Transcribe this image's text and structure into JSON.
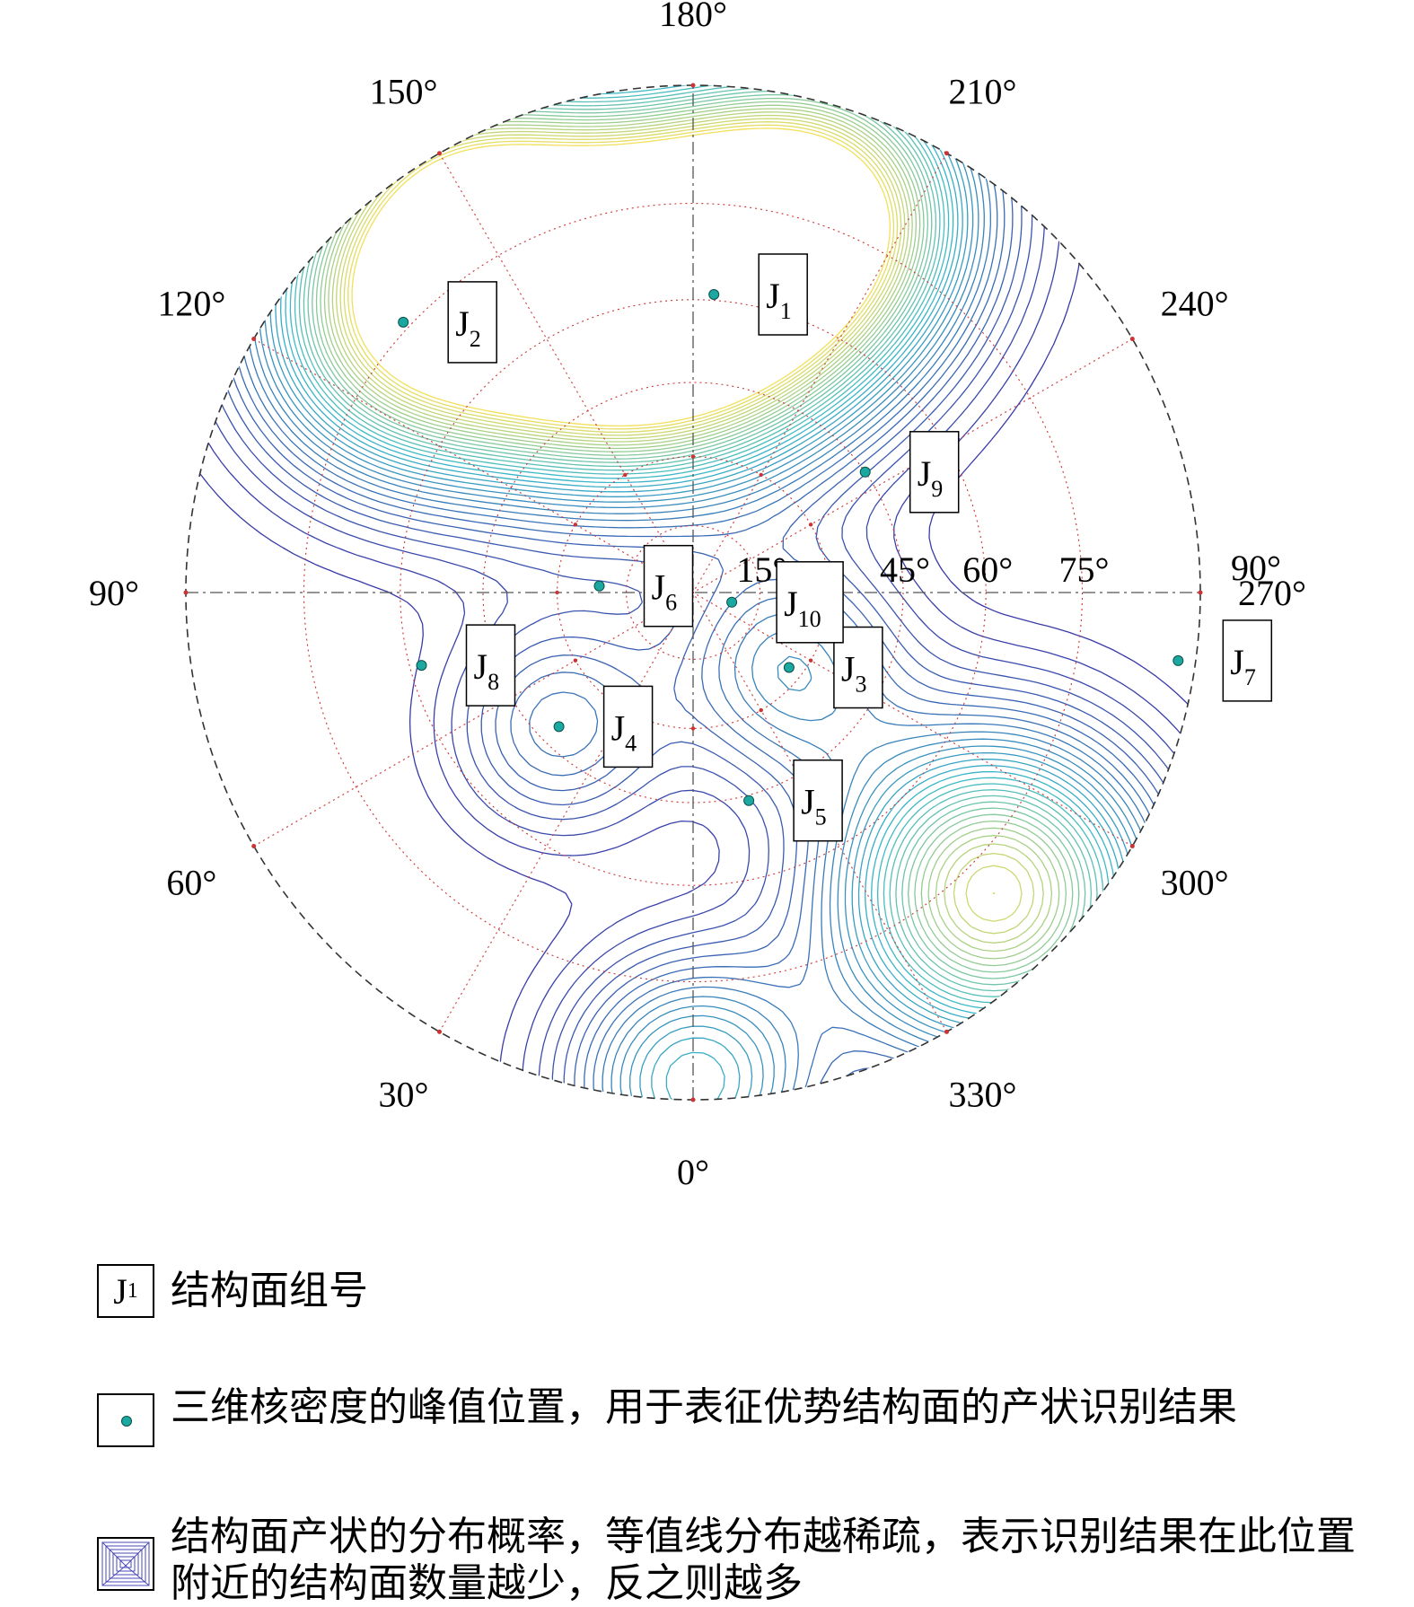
{
  "chart_data": {
    "type": "stereonet-contour",
    "azimuth_labels": [
      "0°",
      "30°",
      "60°",
      "90°",
      "120°",
      "150°",
      "180°",
      "210°",
      "240°",
      "270°",
      "300°",
      "330°"
    ],
    "axis_labels_right": [
      "90°"
    ],
    "dip_labels": [
      "15°",
      "45°",
      "60°",
      "75°"
    ],
    "dip_circles": [
      15,
      30,
      45,
      60,
      75,
      90
    ],
    "joint_sets": [
      {
        "id": "J",
        "sub": "1",
        "azimuth": 184,
        "dip": 61
      },
      {
        "id": "J",
        "sub": "2",
        "azimuth": 133,
        "dip": 76
      },
      {
        "id": "J",
        "sub": "3",
        "azimuth": 308,
        "dip": 27
      },
      {
        "id": "J",
        "sub": "4",
        "azimuth": 45,
        "dip": 41
      },
      {
        "id": "J",
        "sub": "5",
        "azimuth": 345,
        "dip": 46
      },
      {
        "id": "J",
        "sub": "6",
        "azimuth": 94,
        "dip": 21
      },
      {
        "id": "J",
        "sub": "7",
        "azimuth": 278,
        "dip": 88
      },
      {
        "id": "J",
        "sub": "8",
        "azimuth": 75,
        "dip": 58
      },
      {
        "id": "J",
        "sub": "9",
        "azimuth": 235,
        "dip": 45
      },
      {
        "id": "J",
        "sub": "10",
        "azimuth": 284,
        "dip": 9
      }
    ],
    "density_peaks": [
      {
        "azimuth": 184,
        "dip": 64,
        "level": 1.0
      },
      {
        "azimuth": 160,
        "dip": 62,
        "level": 0.95
      },
      {
        "azimuth": 200,
        "dip": 78,
        "level": 0.7
      },
      {
        "azimuth": 133,
        "dip": 76,
        "level": 0.75
      },
      {
        "azimuth": 150,
        "dip": 84,
        "level": 0.55
      },
      {
        "azimuth": 315,
        "dip": 80,
        "level": 0.85
      },
      {
        "azimuth": 308,
        "dip": 27,
        "level": 0.3
      },
      {
        "azimuth": 45,
        "dip": 41,
        "level": 0.25
      },
      {
        "azimuth": 0,
        "dip": 88,
        "level": 0.45
      }
    ],
    "colors": {
      "grid": "#cc3333",
      "contour_low": "#3a3aa8",
      "contour_mid": "#39b9c9",
      "contour_high": "#f2e05a",
      "peak_marker": "#1aa8a0",
      "outline": "#333333"
    }
  },
  "legend": [
    {
      "symbol_text": "J",
      "symbol_sub": "1",
      "text": "结构面组号"
    },
    {
      "symbol_icon": "peak-marker-icon",
      "text": "三维核密度的峰值位置，用于表征优势结构面的产状识别结果"
    },
    {
      "symbol_icon": "contour-swatch-icon",
      "text": "结构面产状的分布概率，等值线分布越稀疏，表示识别结果在此位置附近的结构面数量越少，反之则越多"
    }
  ]
}
